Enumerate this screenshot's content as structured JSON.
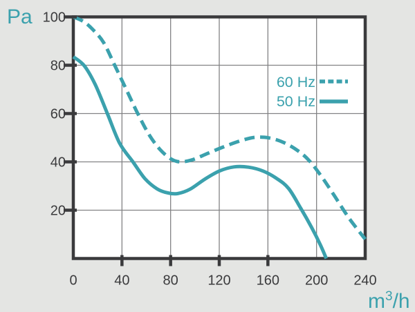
{
  "chart_data": {
    "type": "line",
    "title": "",
    "xlabel": "m³/h",
    "ylabel": "Pa",
    "xlim": [
      0,
      240
    ],
    "ylim": [
      0,
      100
    ],
    "x_ticks": [
      0,
      40,
      80,
      120,
      160,
      200,
      240
    ],
    "y_ticks": [
      100,
      80,
      60,
      40,
      20
    ],
    "x_tick_marks": [
      40,
      80,
      120,
      160
    ],
    "y_tick_marks": [
      100,
      80,
      60,
      40,
      20
    ],
    "x_gridlines": [
      40,
      80,
      120,
      160,
      200
    ],
    "y_gridlines": [
      80,
      60,
      40,
      20
    ],
    "grid": true,
    "legend_position": "inside-upper-right",
    "series": [
      {
        "name": "60 Hz",
        "style": "dashed",
        "points": [
          [
            0,
            100
          ],
          [
            8,
            98.2
          ],
          [
            16,
            94.8
          ],
          [
            25,
            89.3
          ],
          [
            34,
            80
          ],
          [
            44,
            69.5
          ],
          [
            52,
            61
          ],
          [
            62,
            51.5
          ],
          [
            71,
            45.3
          ],
          [
            80,
            41.3
          ],
          [
            88,
            40
          ],
          [
            98,
            40.9
          ],
          [
            110,
            43.4
          ],
          [
            124,
            46.3
          ],
          [
            138,
            48.8
          ],
          [
            150,
            50.2
          ],
          [
            162,
            49.8
          ],
          [
            174,
            47.8
          ],
          [
            185,
            44.5
          ],
          [
            194,
            40.5
          ],
          [
            204,
            34
          ],
          [
            214,
            26.5
          ],
          [
            227,
            16.5
          ],
          [
            240,
            8
          ]
        ]
      },
      {
        "name": "50 Hz",
        "style": "solid",
        "points": [
          [
            0,
            83.5
          ],
          [
            9,
            79.8
          ],
          [
            18,
            72
          ],
          [
            28,
            60
          ],
          [
            38,
            47.8
          ],
          [
            49,
            40
          ],
          [
            59,
            33
          ],
          [
            69,
            28.8
          ],
          [
            78,
            27.1
          ],
          [
            86,
            26.9
          ],
          [
            96,
            28.7
          ],
          [
            108,
            32.8
          ],
          [
            120,
            36.2
          ],
          [
            132,
            37.9
          ],
          [
            144,
            37.8
          ],
          [
            156,
            36.2
          ],
          [
            167,
            33.2
          ],
          [
            177,
            29
          ],
          [
            187,
            20.8
          ],
          [
            196,
            12.8
          ],
          [
            203,
            5.8
          ],
          [
            208,
            0
          ]
        ]
      }
    ]
  },
  "axes": {
    "y_unit": "Pa",
    "x_unit_base": "m",
    "x_unit_sup": "3",
    "x_unit_rest": "/h",
    "x_tick_labels": [
      "0",
      "40",
      "80",
      "120",
      "160",
      "200",
      "240"
    ],
    "y_tick_labels": [
      "100",
      "80",
      "60",
      "40",
      "20"
    ]
  },
  "legend": {
    "items": [
      {
        "label": "60 Hz",
        "line": "dashed"
      },
      {
        "label": "50 Hz",
        "line": "solid"
      }
    ]
  },
  "colors": {
    "accent": "#3BA1AD",
    "background": "#E4E5E3",
    "plot_background": "#FFFFFF",
    "border": "#3A3A3C",
    "grid": "#828284",
    "text": "#3B3B3D"
  }
}
